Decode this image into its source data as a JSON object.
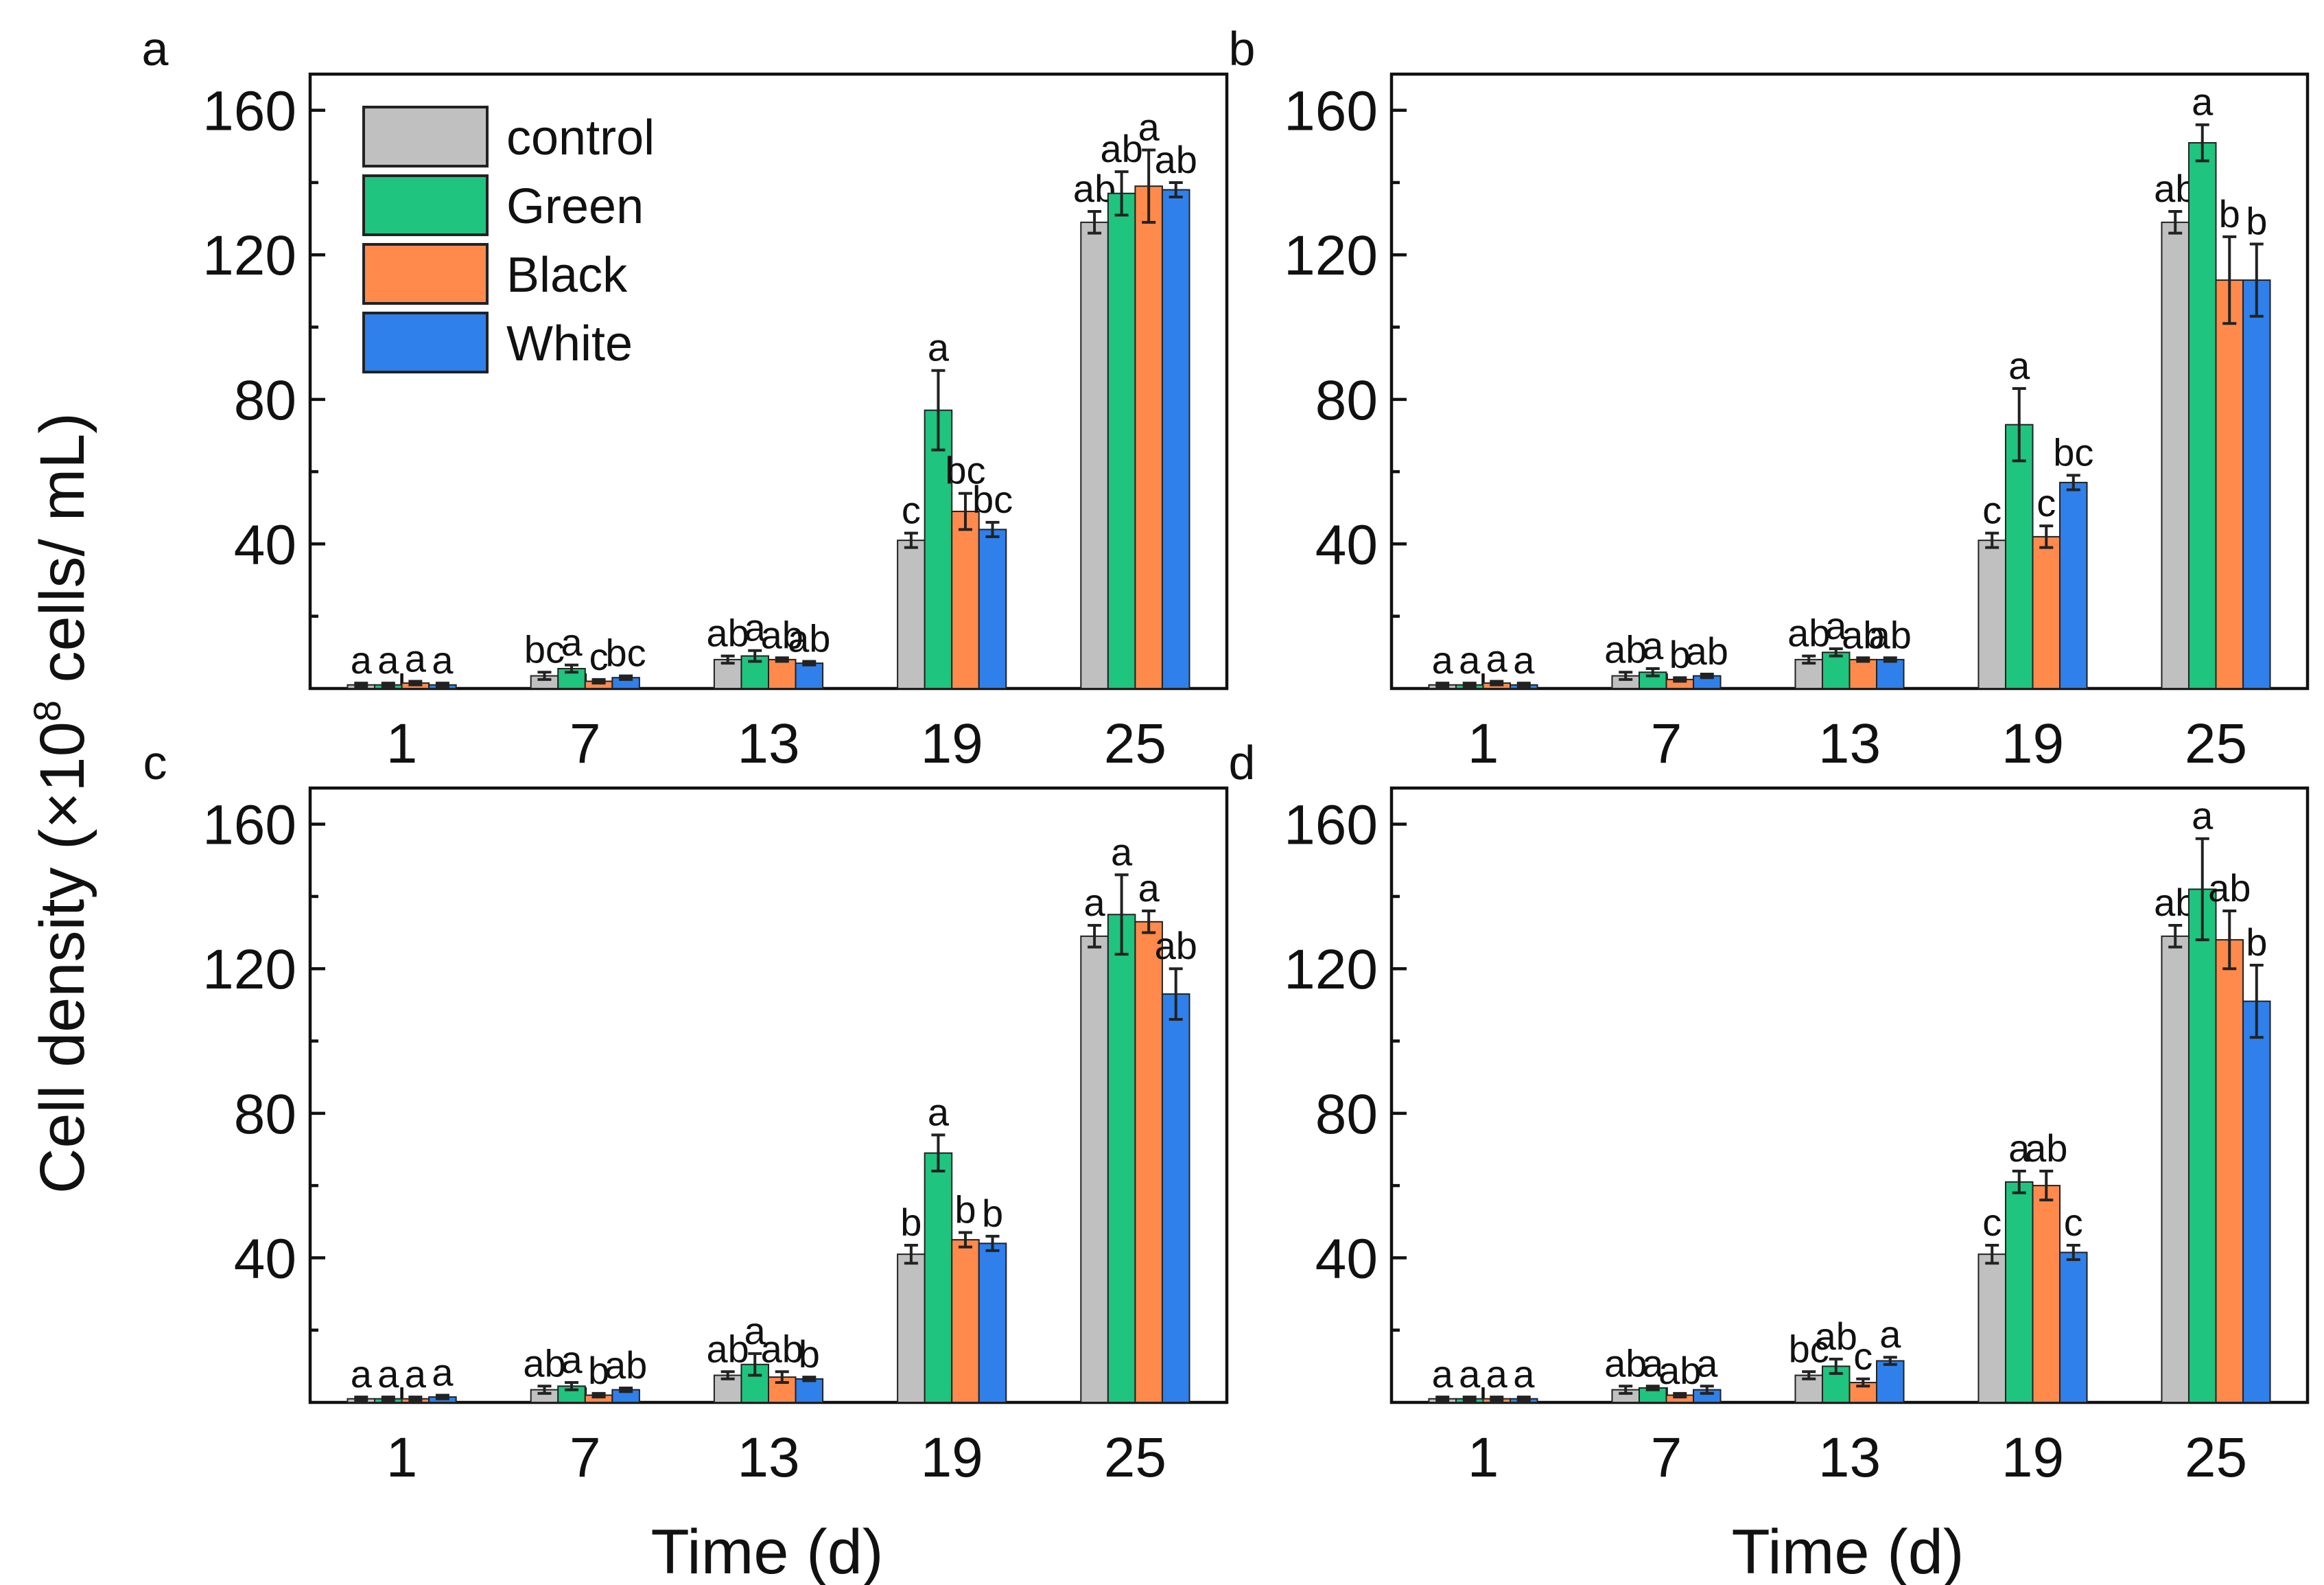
{
  "figure": {
    "ylabel_main": "Cell density (×10",
    "ylabel_sup": "8",
    "ylabel_end": " cells/ mL)",
    "xlabel": "Time (d)"
  },
  "legend": {
    "entries": [
      {
        "name": "control",
        "color": "#c0c0c0"
      },
      {
        "name": "Green",
        "color": "#1fc47e"
      },
      {
        "name": "Black",
        "color": "#ff8a4c"
      },
      {
        "name": "White",
        "color": "#2f80ea"
      }
    ]
  },
  "chart_data": [
    {
      "type": "bar",
      "panel": "a",
      "categories": [
        "1",
        "7",
        "13",
        "19",
        "25"
      ],
      "ylim": [
        0,
        170
      ],
      "yticks": [
        "40",
        "80",
        "120",
        "160"
      ],
      "series": [
        {
          "name": "control",
          "values": [
            1,
            3.5,
            8,
            41,
            129
          ],
          "errors": [
            0.5,
            1,
            1,
            2,
            3
          ],
          "letters": [
            "a",
            "bc",
            "ab",
            "c",
            "ab"
          ]
        },
        {
          "name": "Green",
          "values": [
            1,
            5.5,
            9,
            77,
            137
          ],
          "errors": [
            0.5,
            1,
            1.5,
            11,
            6
          ],
          "letters": [
            "a",
            "a",
            "a",
            "a",
            "ab"
          ]
        },
        {
          "name": "Black",
          "values": [
            1.5,
            2,
            8,
            49,
            139
          ],
          "errors": [
            0.5,
            0.5,
            0.5,
            5,
            10
          ],
          "letters": [
            "a",
            "c",
            "ab",
            "bc",
            "a"
          ]
        },
        {
          "name": "White",
          "values": [
            1,
            3,
            7,
            44,
            138
          ],
          "errors": [
            0.5,
            0.5,
            0.5,
            2,
            2
          ],
          "letters": [
            "a",
            "bc",
            "ab",
            "bc",
            "ab"
          ]
        }
      ]
    },
    {
      "type": "bar",
      "panel": "b",
      "categories": [
        "1",
        "7",
        "13",
        "19",
        "25"
      ],
      "ylim": [
        0,
        170
      ],
      "yticks": [
        "40",
        "80",
        "120",
        "160"
      ],
      "series": [
        {
          "name": "control",
          "values": [
            1,
            3.5,
            8,
            41,
            129
          ],
          "errors": [
            0.5,
            1,
            1,
            2,
            3
          ],
          "letters": [
            "a",
            "ab",
            "ab",
            "c",
            "ab"
          ]
        },
        {
          "name": "Green",
          "values": [
            1,
            4.5,
            10,
            73,
            151
          ],
          "errors": [
            0.5,
            1,
            1,
            10,
            5
          ],
          "letters": [
            "a",
            "a",
            "a",
            "a",
            "a"
          ]
        },
        {
          "name": "Black",
          "values": [
            1.5,
            2.5,
            8,
            42,
            113
          ],
          "errors": [
            0.5,
            0.5,
            0.5,
            3,
            12
          ],
          "letters": [
            "a",
            "b",
            "ab",
            "c",
            "b"
          ]
        },
        {
          "name": "White",
          "values": [
            1,
            3.5,
            8,
            57,
            113
          ],
          "errors": [
            0.5,
            0.5,
            0.5,
            2,
            10
          ],
          "letters": [
            "a",
            "ab",
            "ab",
            "bc",
            "b"
          ]
        }
      ]
    },
    {
      "type": "bar",
      "panel": "c",
      "categories": [
        "1",
        "7",
        "13",
        "19",
        "25"
      ],
      "ylim": [
        0,
        170
      ],
      "yticks": [
        "40",
        "80",
        "120",
        "160"
      ],
      "series": [
        {
          "name": "control",
          "values": [
            1,
            3.5,
            7.5,
            41,
            129
          ],
          "errors": [
            0.5,
            1,
            1,
            2.5,
            3
          ],
          "letters": [
            "a",
            "ab",
            "ab",
            "b",
            "a"
          ]
        },
        {
          "name": "Green",
          "values": [
            1,
            4.5,
            10.5,
            69,
            135
          ],
          "errors": [
            0.5,
            1,
            3,
            5,
            11
          ],
          "letters": [
            "a",
            "a",
            "a",
            "a",
            "a"
          ]
        },
        {
          "name": "Black",
          "values": [
            1,
            2,
            7,
            45,
            133
          ],
          "errors": [
            0.5,
            0.5,
            1.5,
            2,
            3
          ],
          "letters": [
            "a",
            "b",
            "ab",
            "b",
            "a"
          ]
        },
        {
          "name": "White",
          "values": [
            1.5,
            3.5,
            6.5,
            44,
            113
          ],
          "errors": [
            0.5,
            0.5,
            0.5,
            2,
            7
          ],
          "letters": [
            "a",
            "ab",
            "b",
            "b",
            "ab"
          ]
        }
      ]
    },
    {
      "type": "bar",
      "panel": "d",
      "categories": [
        "1",
        "7",
        "13",
        "19",
        "25"
      ],
      "ylim": [
        0,
        170
      ],
      "yticks": [
        "40",
        "80",
        "120",
        "160"
      ],
      "series": [
        {
          "name": "control",
          "values": [
            1,
            3.5,
            7.5,
            41,
            129
          ],
          "errors": [
            0.5,
            1,
            1,
            2.5,
            3
          ],
          "letters": [
            "a",
            "ab",
            "bc",
            "c",
            "ab"
          ]
        },
        {
          "name": "Green",
          "values": [
            1,
            4,
            10,
            61,
            142
          ],
          "errors": [
            0.5,
            0.5,
            2,
            3,
            14
          ],
          "letters": [
            "a",
            "a",
            "ab",
            "a",
            "a"
          ]
        },
        {
          "name": "Black",
          "values": [
            1,
            2,
            5.5,
            60,
            128
          ],
          "errors": [
            0.5,
            0.5,
            1,
            4,
            8
          ],
          "letters": [
            "a",
            "ab",
            "c",
            "ab",
            "ab"
          ]
        },
        {
          "name": "White",
          "values": [
            1,
            3.5,
            11.5,
            41.5,
            111
          ],
          "errors": [
            0.5,
            1,
            1,
            2,
            10
          ],
          "letters": [
            "a",
            "a",
            "a",
            "c",
            "b"
          ]
        }
      ]
    }
  ]
}
